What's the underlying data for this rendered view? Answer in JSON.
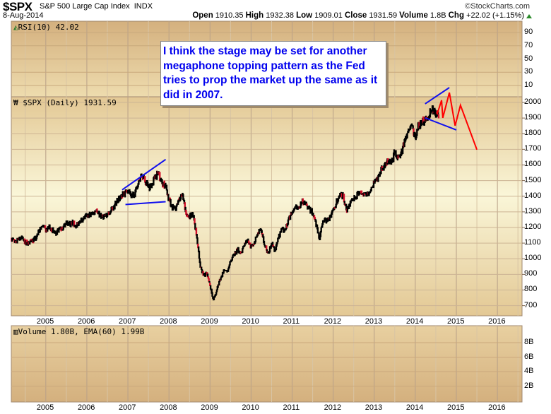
{
  "header": {
    "symbol": "$SPX",
    "name": "S&P 500 Large Cap Index",
    "exchange": "INDX",
    "date": "8-Aug-2014",
    "copyright": "©StockCharts.com",
    "open_label": "Open",
    "open": "1910.35",
    "high_label": "High",
    "high": "1932.38",
    "low_label": "Low",
    "low": "1909.01",
    "close_label": "Close",
    "close": "1931.59",
    "volume_label": "Volume",
    "volume": "1.8B",
    "chg_label": "Chg",
    "chg": "+22.02 (+1.15%)",
    "chg_direction": "up",
    "up_color": "#2a8a2a"
  },
  "rsi_panel": {
    "label": "RSI(10) 42.02",
    "ticks": [
      90,
      70,
      50,
      30,
      10
    ],
    "ylim": [
      0,
      100
    ]
  },
  "price_panel": {
    "label": "$SPX (Daily) 1931.59"
  },
  "volume_panel": {
    "label": "Volume 1.80B, EMA(60) 1.99B",
    "ticks": [
      "8B",
      "6B",
      "4B",
      "2B"
    ]
  },
  "annotation": {
    "text": "I think the stage may be set for another megaphone topping pattern as the Fed tries to prop the market up the same as it did in 2007.",
    "color": "#0000ee"
  },
  "chart_data": {
    "type": "line",
    "xlabel": "",
    "ylabel": "",
    "x_ticks": [
      "2005",
      "2006",
      "2007",
      "2008",
      "2009",
      "2010",
      "2011",
      "2012",
      "2013",
      "2014",
      "2015",
      "2016"
    ],
    "xlim": [
      2004.16,
      2016.6
    ],
    "y_ticks": [
      700,
      800,
      900,
      1000,
      1100,
      1200,
      1300,
      1400,
      1500,
      1600,
      1700,
      1800,
      1900,
      2000
    ],
    "ylim": [
      635,
      2036
    ],
    "grid": true,
    "series": [
      {
        "start": "2004-03",
        "frequency": "monthly",
        "color": "#000000",
        "values": [
          1126,
          1107,
          1121,
          1141,
          1102,
          1104,
          1115,
          1130,
          1174,
          1212,
          1181,
          1204,
          1181,
          1157,
          1192,
          1191,
          1234,
          1220,
          1229,
          1207,
          1249,
          1248,
          1280,
          1281,
          1295,
          1311,
          1270,
          1270,
          1277,
          1304,
          1336,
          1378,
          1401,
          1418,
          1438,
          1407,
          1421,
          1482,
          1531,
          1503,
          1455,
          1474,
          1527,
          1549,
          1481,
          1468,
          1379,
          1331,
          1323,
          1386,
          1400,
          1280,
          1267,
          1283,
          1166,
          969,
          896,
          903,
          826,
          735,
          798,
          873,
          919,
          919,
          987,
          1021,
          1057,
          1036,
          1096,
          1115,
          1074,
          1104,
          1169,
          1187,
          1089,
          1031,
          1102,
          1049,
          1141,
          1183,
          1181,
          1258,
          1286,
          1327,
          1326,
          1364,
          1345,
          1321,
          1292,
          1219,
          1131,
          1253,
          1247,
          1258,
          1312,
          1366,
          1408,
          1398,
          1310,
          1362,
          1379,
          1407,
          1441,
          1412,
          1416,
          1426,
          1498,
          1515,
          1569,
          1598,
          1631,
          1606,
          1686,
          1633,
          1682,
          1757,
          1806,
          1848,
          1783,
          1859,
          1872,
          1884,
          1924,
          1960,
          1931,
          1931.59
        ]
      }
    ],
    "annotations": [
      {
        "type": "trendline",
        "color": "#1010ee",
        "points": [
          [
            2006.86,
            1441
          ],
          [
            2007.92,
            1635
          ]
        ]
      },
      {
        "type": "trendline",
        "color": "#1010ee",
        "points": [
          [
            2006.94,
            1347
          ],
          [
            2007.92,
            1365
          ]
        ]
      },
      {
        "type": "trendline",
        "color": "#1010ee",
        "points": [
          [
            2014.24,
            1991
          ],
          [
            2014.83,
            2095
          ]
        ]
      },
      {
        "type": "trendline",
        "color": "#1010ee",
        "points": [
          [
            2014.24,
            1901
          ],
          [
            2015.0,
            1824
          ]
        ]
      },
      {
        "type": "projection",
        "color": "#ff0000",
        "points": [
          [
            2014.53,
            1923
          ],
          [
            2014.64,
            2014
          ],
          [
            2014.67,
            1901
          ],
          [
            2014.83,
            2063
          ],
          [
            2014.97,
            1851
          ],
          [
            2015.1,
            1982
          ],
          [
            2015.5,
            1698
          ]
        ]
      }
    ]
  }
}
